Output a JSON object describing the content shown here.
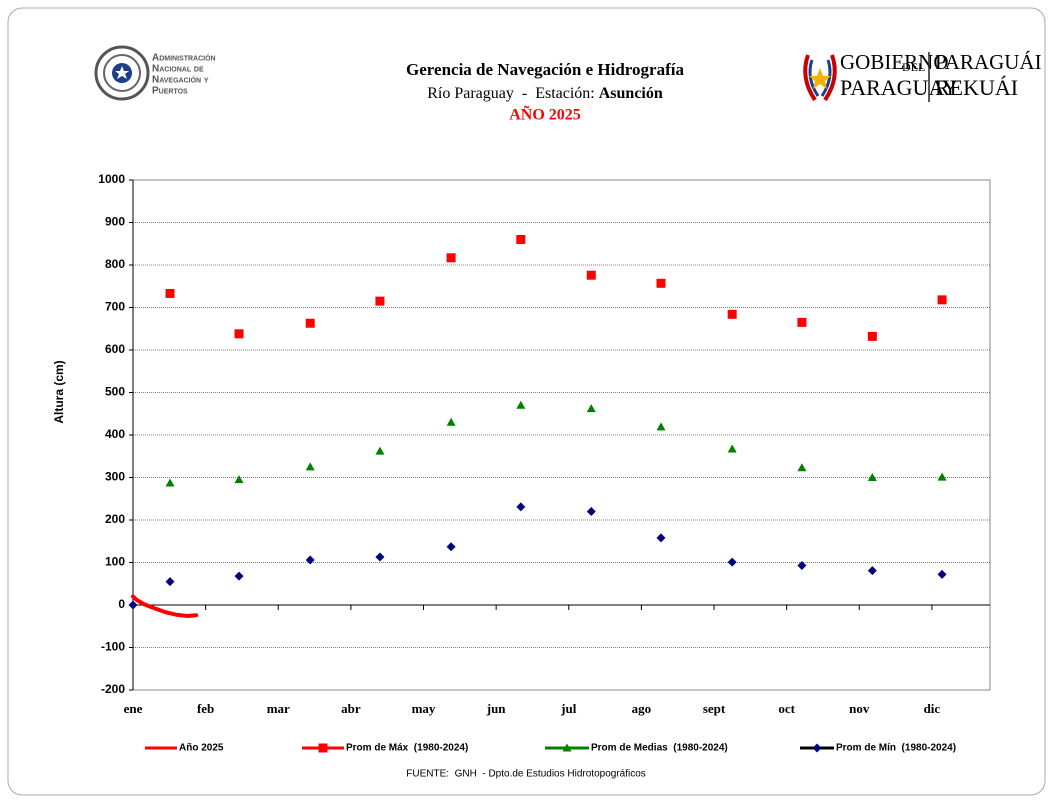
{
  "logos": {
    "left": [
      "Administración",
      "Nacional de",
      "Navegación y",
      "Puertos"
    ],
    "right_top": [
      "GOBIERNO",
      "DEL",
      "PARAGUÁI"
    ],
    "right_bottom": [
      "PARAGUAY",
      "REKUÁI"
    ]
  },
  "chart_data": {
    "type": "scatter",
    "title": "Gerencia de Navegación e Hidrografía",
    "subtitle": "Río Paraguay  -  Estación: ",
    "subtitle_bold": "Asunción",
    "year_label": "AÑO 2025",
    "ylabel": "Altura (cm)",
    "source": "FUENTE:  GNH  - Dpto.de Estudios Hidrotopográficos",
    "xlim": [
      0,
      11.8
    ],
    "xticks": [
      {
        "value": 0,
        "label": "ene"
      },
      {
        "value": 1,
        "label": "feb"
      },
      {
        "value": 2,
        "label": "mar"
      },
      {
        "value": 3,
        "label": "abr"
      },
      {
        "value": 4,
        "label": "may"
      },
      {
        "value": 5,
        "label": "jun"
      },
      {
        "value": 6,
        "label": "jul"
      },
      {
        "value": 7,
        "label": "ago"
      },
      {
        "value": 8,
        "label": "sept"
      },
      {
        "value": 9,
        "label": "oct"
      },
      {
        "value": 10,
        "label": "nov"
      },
      {
        "value": 11,
        "label": "dic"
      }
    ],
    "ylim": [
      -200,
      1000
    ],
    "yticks": [
      -200,
      -100,
      0,
      100,
      200,
      300,
      400,
      500,
      600,
      700,
      800,
      900,
      1000
    ],
    "grid": true,
    "series": [
      {
        "name": "Año 2025",
        "color": "#ff0000",
        "marker": "line",
        "x": [
          0,
          0.05,
          0.15,
          0.3,
          0.45,
          0.6,
          0.75,
          0.87
        ],
        "values": [
          20,
          12,
          2,
          -8,
          -17,
          -23,
          -26,
          -24
        ]
      },
      {
        "name": "Prom de Máx  (1980-2024)",
        "color": "#ff0000",
        "marker": "square",
        "x": [
          0.51,
          1.46,
          2.44,
          3.4,
          4.38,
          5.34,
          6.31,
          7.27,
          8.25,
          9.21,
          10.18,
          11.14
        ],
        "values": [
          733,
          638,
          663,
          715,
          817,
          860,
          776,
          757,
          684,
          665,
          632,
          718
        ]
      },
      {
        "name": "Prom de Medias  (1980-2024)",
        "color": "#008000",
        "marker": "triangle",
        "x": [
          0.51,
          1.46,
          2.44,
          3.4,
          4.38,
          5.34,
          6.31,
          7.27,
          8.25,
          9.21,
          10.18,
          11.14
        ],
        "values": [
          287,
          295,
          325,
          362,
          430,
          470,
          462,
          419,
          367,
          323,
          300,
          301
        ]
      },
      {
        "name": "Prom de Mín  (1980-2024)",
        "color": "#000080",
        "marker": "diamond",
        "x": [
          0,
          0.51,
          1.46,
          2.44,
          3.4,
          4.38,
          5.34,
          6.31,
          7.27,
          8.25,
          9.21,
          10.18,
          11.14
        ],
        "values": [
          0,
          55,
          68,
          106,
          113,
          137,
          231,
          220,
          158,
          101,
          93,
          81,
          72
        ]
      }
    ]
  }
}
